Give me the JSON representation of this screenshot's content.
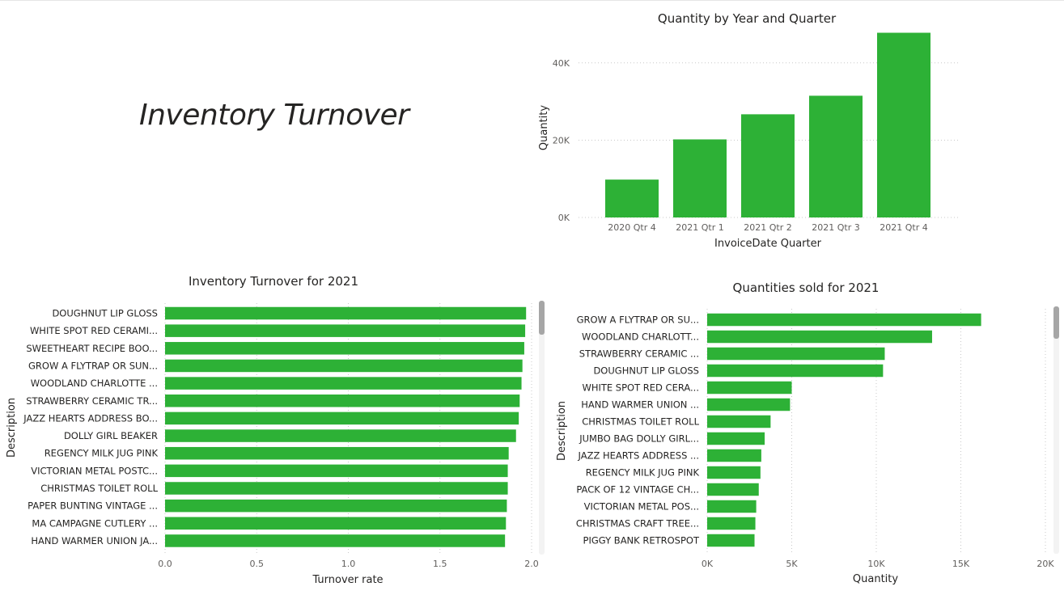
{
  "page": {
    "title": "Inventory Turnover"
  },
  "colors": {
    "bar": "#2db136",
    "grid": "#c8c8c8"
  },
  "chart_data": [
    {
      "id": "quarter",
      "type": "bar",
      "title": "Quantity by Year and Quarter",
      "xlabel": "InvoiceDate Quarter",
      "ylabel": "Quantity",
      "categories": [
        "2020 Qtr 4",
        "2021 Qtr 1",
        "2021 Qtr 2",
        "2021 Qtr 3",
        "2021 Qtr 4"
      ],
      "values": [
        9800,
        20200,
        26700,
        31500,
        47800
      ],
      "ylim": [
        0,
        50000
      ],
      "yticks": [
        0,
        20000,
        40000
      ],
      "ytick_labels": [
        "0K",
        "20K",
        "40K"
      ],
      "grid": true,
      "legend": "none"
    },
    {
      "id": "turnover",
      "type": "bar",
      "orientation": "horizontal",
      "title": "Inventory Turnover for 2021",
      "xlabel": "Turnover rate",
      "ylabel": "Description",
      "categories": [
        "DOUGHNUT LIP GLOSS",
        "WHITE SPOT RED CERAMI...",
        "SWEETHEART RECIPE BOO...",
        "GROW A FLYTRAP OR SUN...",
        "WOODLAND CHARLOTTE ...",
        "STRAWBERRY CERAMIC TR...",
        "JAZZ HEARTS ADDRESS BO...",
        "DOLLY GIRL BEAKER",
        "REGENCY MILK JUG PINK",
        "VICTORIAN METAL POSTC...",
        "CHRISTMAS TOILET ROLL",
        "PAPER BUNTING VINTAGE ...",
        "MA CAMPAGNE CUTLERY ...",
        "HAND WARMER UNION JA..."
      ],
      "values": [
        1.97,
        1.965,
        1.96,
        1.95,
        1.945,
        1.935,
        1.93,
        1.915,
        1.875,
        1.87,
        1.87,
        1.865,
        1.86,
        1.855
      ],
      "xlim": [
        0,
        2.0
      ],
      "xticks": [
        0,
        0.5,
        1.0,
        1.5,
        2.0
      ],
      "xtick_labels": [
        "0.0",
        "0.5",
        "1.0",
        "1.5",
        "2.0"
      ],
      "grid": true,
      "legend": "none"
    },
    {
      "id": "quantities",
      "type": "bar",
      "orientation": "horizontal",
      "title": "Quantities sold for 2021",
      "xlabel": "Quantity",
      "ylabel": "Description",
      "categories": [
        "GROW A FLYTRAP OR SU...",
        "WOODLAND CHARLOTT...",
        "STRAWBERRY CERAMIC ...",
        "DOUGHNUT LIP GLOSS",
        "WHITE SPOT RED CERA...",
        "HAND WARMER UNION ...",
        "CHRISTMAS TOILET ROLL",
        "JUMBO BAG DOLLY GIRL...",
        "JAZZ HEARTS ADDRESS ...",
        "REGENCY MILK JUG PINK",
        "PACK OF 12 VINTAGE CH...",
        "VICTORIAN METAL POS...",
        "CHRISTMAS CRAFT TREE...",
        "PIGGY BANK RETROSPOT"
      ],
      "values": [
        16200,
        13300,
        10500,
        10400,
        5000,
        4900,
        3750,
        3400,
        3200,
        3150,
        3050,
        2900,
        2850,
        2800
      ],
      "xlim": [
        0,
        20000
      ],
      "xticks": [
        0,
        5000,
        10000,
        15000,
        20000
      ],
      "xtick_labels": [
        "0K",
        "5K",
        "10K",
        "15K",
        "20K"
      ],
      "grid": true,
      "legend": "none"
    }
  ]
}
